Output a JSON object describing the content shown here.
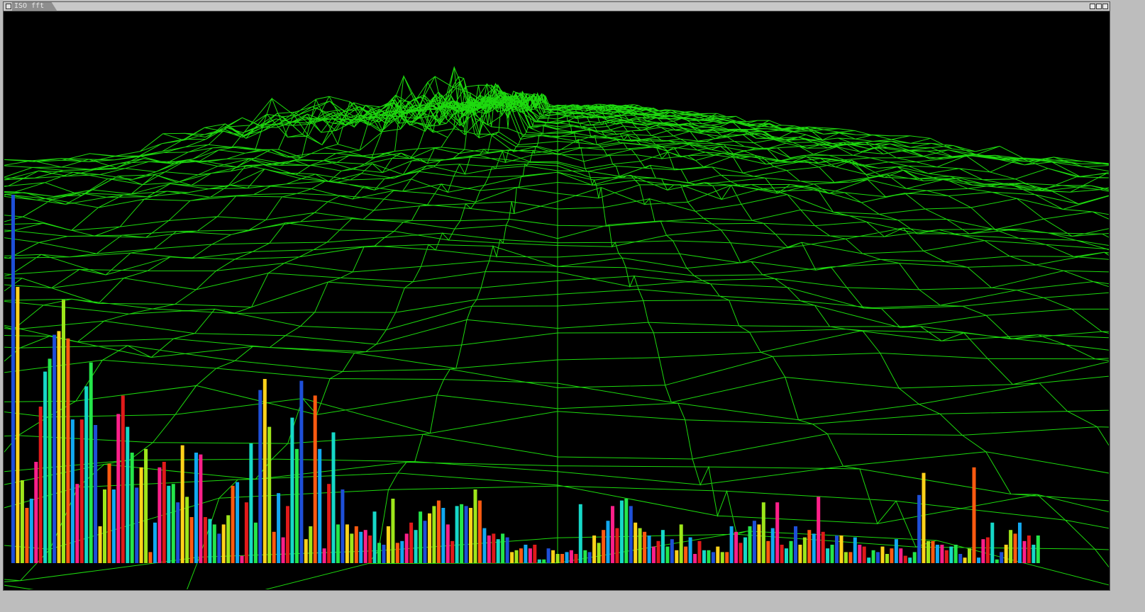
{
  "window": {
    "title": "ISO fft"
  },
  "icons": {
    "system_menu": "window-menu-icon",
    "minimize": "minimize-icon",
    "maximize": "maximize-icon",
    "close": "close-icon"
  },
  "colors": {
    "mesh": "#22ff11",
    "background": "#000000"
  },
  "chart_data": {
    "type": "bar",
    "values": [
      200,
      150,
      45,
      30,
      35,
      55,
      85,
      104,
      111,
      124,
      126,
      143,
      122,
      78,
      43,
      78,
      96,
      109,
      75,
      20,
      40,
      54,
      40,
      81,
      91,
      74,
      60,
      41,
      52,
      62,
      6,
      22,
      52,
      55,
      42,
      43,
      33,
      64,
      36,
      25,
      60,
      59,
      25,
      24,
      21,
      16,
      21,
      26,
      42,
      44,
      4,
      33,
      65,
      22,
      94,
      100,
      74,
      17,
      38,
      14,
      31,
      79,
      62,
      99,
      13,
      20,
      91,
      62,
      8,
      43,
      71,
      21,
      40,
      21,
      16,
      20,
      17,
      18,
      15,
      28,
      11,
      10,
      20,
      35,
      11,
      12,
      16,
      22,
      18,
      28,
      23,
      27,
      31,
      34,
      30,
      21,
      12,
      31,
      32,
      31,
      30,
      40,
      34,
      19,
      15,
      16,
      13,
      16,
      14,
      6,
      7,
      8,
      10,
      8,
      10,
      2,
      2,
      8,
      7,
      5,
      5,
      6,
      7,
      5,
      32,
      7,
      6,
      15,
      11,
      18,
      23,
      31,
      19,
      34,
      35,
      31,
      22,
      19,
      17,
      15,
      9,
      12,
      18,
      9,
      13,
      7,
      21,
      9,
      14,
      5,
      12,
      7,
      7,
      6,
      9,
      6,
      6,
      20,
      17,
      11,
      14,
      20,
      23,
      21,
      33,
      12,
      19,
      33,
      10,
      8,
      12,
      20,
      10,
      14,
      18,
      16,
      36,
      17,
      8,
      10,
      15,
      15,
      6,
      6,
      14,
      10,
      9,
      3,
      7,
      6,
      9,
      5,
      8,
      13,
      8,
      4,
      3,
      6,
      37,
      49,
      12,
      12,
      10,
      10,
      7,
      9,
      10,
      5,
      3,
      8,
      52,
      3,
      13,
      14,
      22,
      2,
      6,
      10,
      18,
      16,
      22,
      12,
      15,
      10,
      15
    ]
  }
}
